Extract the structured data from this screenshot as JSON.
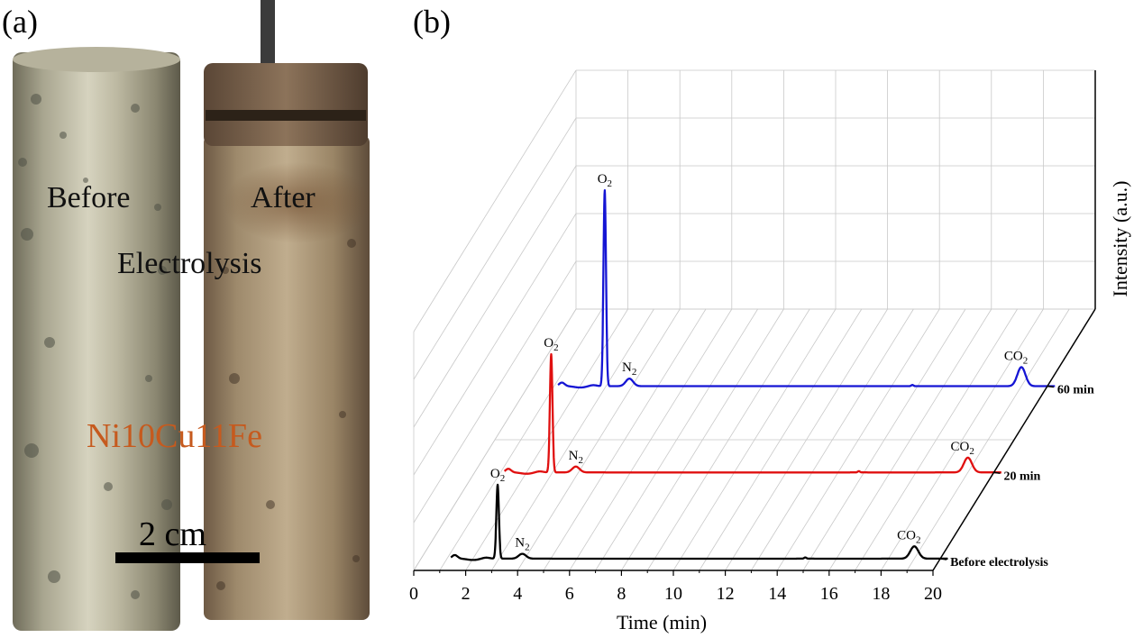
{
  "panel_a": {
    "label": "(a)",
    "left_text": "Before",
    "right_text": "After",
    "middle_text": "Electrolysis",
    "sample_label": "Ni10Cu11Fe",
    "scale_label": "2 cm",
    "sample_label_color": "#c65a1e"
  },
  "panel_b": {
    "label": "(b)"
  },
  "chart_data": {
    "type": "line",
    "title": "",
    "xlabel": "Time (min)",
    "zlabel": "Intensity (a.u.)",
    "xlim": [
      0,
      20
    ],
    "x_ticks": [
      "0",
      "2",
      "4",
      "6",
      "8",
      "10",
      "12",
      "14",
      "16",
      "18",
      "20"
    ],
    "depth_categories": [
      "Before electrolysis",
      "20 min",
      "60 min"
    ],
    "grid": true,
    "series": [
      {
        "name": "Before electrolysis",
        "color": "#000000",
        "peak_amplitude": 1.0,
        "peaks": [
          {
            "label_main": "O",
            "label_sub": "2",
            "x": 2.95
          },
          {
            "label_main": "N",
            "label_sub": "2",
            "x": 3.9
          },
          {
            "label_main": "CO",
            "label_sub": "2",
            "x": 19.0
          }
        ]
      },
      {
        "name": "20 min",
        "color": "#e01010",
        "peak_amplitude": 1.6,
        "peaks": [
          {
            "label_main": "O",
            "label_sub": "2",
            "x": 2.95
          },
          {
            "label_main": "N",
            "label_sub": "2",
            "x": 3.9
          },
          {
            "label_main": "CO",
            "label_sub": "2",
            "x": 19.0
          }
        ]
      },
      {
        "name": "60 min",
        "color": "#1515d4",
        "peak_amplitude": 2.65,
        "peaks": [
          {
            "label_main": "O",
            "label_sub": "2",
            "x": 2.95
          },
          {
            "label_main": "N",
            "label_sub": "2",
            "x": 3.9
          },
          {
            "label_main": "CO",
            "label_sub": "2",
            "x": 19.0
          }
        ]
      }
    ]
  }
}
